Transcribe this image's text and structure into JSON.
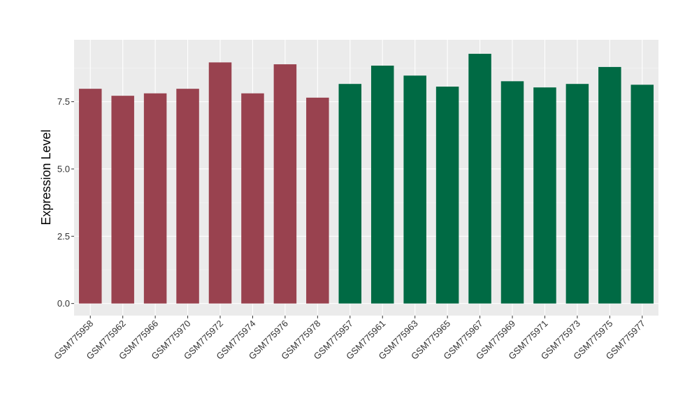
{
  "chart_data": {
    "type": "bar",
    "title": "",
    "xlabel": "",
    "ylabel": "Expression Level",
    "ylim": [
      -0.45,
      9.8
    ],
    "yticks": [
      0.0,
      2.5,
      5.0,
      7.5
    ],
    "ytick_labels": [
      "0.0",
      "2.5",
      "5.0",
      "7.5"
    ],
    "grid": true,
    "legend": "none",
    "panel_background": "#ebebeb",
    "categories": [
      "GSM775958",
      "GSM775962",
      "GSM775966",
      "GSM775970",
      "GSM775972",
      "GSM775974",
      "GSM775976",
      "GSM775978",
      "GSM775957",
      "GSM775961",
      "GSM775963",
      "GSM775965",
      "GSM775967",
      "GSM775969",
      "GSM775971",
      "GSM775973",
      "GSM775975",
      "GSM775977"
    ],
    "values": [
      7.98,
      7.72,
      7.81,
      7.98,
      8.96,
      7.81,
      8.89,
      7.65,
      8.16,
      8.84,
      8.47,
      8.06,
      9.28,
      8.26,
      8.03,
      8.16,
      8.79,
      8.13
    ],
    "bar_colors": [
      "#99424f",
      "#99424f",
      "#99424f",
      "#99424f",
      "#99424f",
      "#99424f",
      "#99424f",
      "#99424f",
      "#006a44",
      "#006a44",
      "#006a44",
      "#006a44",
      "#006a44",
      "#006a44",
      "#006a44",
      "#006a44",
      "#006a44",
      "#006a44"
    ]
  }
}
